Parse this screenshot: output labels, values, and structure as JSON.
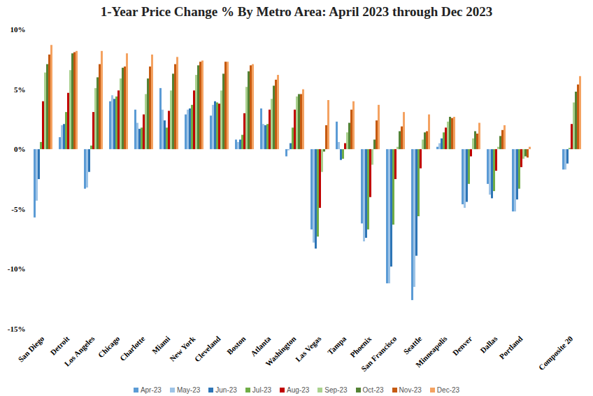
{
  "chart_data": {
    "type": "bar",
    "title": "1-Year Price Change % By Metro Area: April 2023 through Dec 2023",
    "categories": [
      "San Diego",
      "Detroit",
      "Los Angeles",
      "Chicago",
      "Charlotte",
      "Miami",
      "New York",
      "Cleveland",
      "Boston",
      "Atlanta",
      "Washington",
      "Las Vegas",
      "Tampa",
      "Phoenix",
      "San Francisco",
      "Seattle",
      "Minneapolis",
      "Denver",
      "Dallas",
      "Portland",
      null,
      "Composite 20"
    ],
    "series": [
      {
        "name": "Apr-23",
        "color": "#5b9bd5",
        "values": [
          -5.7,
          1.0,
          -3.3,
          4.0,
          3.3,
          5.1,
          2.9,
          2.8,
          0.8,
          3.4,
          -0.6,
          -6.7,
          2.3,
          -6.2,
          -11.2,
          -12.6,
          0.2,
          -4.6,
          -2.9,
          -5.2,
          null,
          -1.7
        ]
      },
      {
        "name": "May-23",
        "color": "#9dc3e6",
        "values": [
          -4.3,
          2.0,
          -3.2,
          4.5,
          2.2,
          3.3,
          3.3,
          3.7,
          0.6,
          2.1,
          -0.1,
          -7.8,
          0.6,
          -7.7,
          -11.2,
          -11.5,
          0.5,
          -4.9,
          -3.8,
          -5.2,
          null,
          -1.7
        ]
      },
      {
        "name": "Jun-23",
        "color": "#2e75b6",
        "values": [
          -2.5,
          2.1,
          -1.9,
          4.2,
          1.7,
          2.4,
          3.4,
          4.0,
          0.8,
          2.0,
          0.5,
          -8.3,
          -0.9,
          -7.4,
          -9.8,
          -8.9,
          0.9,
          -4.4,
          -4.1,
          -4.2,
          null,
          -1.2
        ]
      },
      {
        "name": "Jul-23",
        "color": "#70ad47",
        "values": [
          0.6,
          3.1,
          0.3,
          4.4,
          1.8,
          1.8,
          3.7,
          3.9,
          1.2,
          2.1,
          1.8,
          -7.3,
          -0.8,
          -6.7,
          -6.3,
          -5.6,
          1.4,
          -2.9,
          -3.5,
          -3.3,
          null,
          0.1
        ]
      },
      {
        "name": "Aug-23",
        "color": "#c00000",
        "values": [
          4.0,
          4.7,
          3.1,
          4.9,
          2.9,
          3.2,
          4.9,
          3.8,
          3.0,
          3.3,
          3.3,
          -4.9,
          0.5,
          -4.0,
          -2.5,
          -1.6,
          1.8,
          -0.6,
          -1.8,
          -1.5,
          null,
          2.1
        ]
      },
      {
        "name": "Sep-23",
        "color": "#a9d18e",
        "values": [
          6.4,
          6.6,
          5.1,
          5.9,
          4.6,
          4.9,
          6.2,
          4.9,
          5.2,
          4.2,
          4.4,
          -1.9,
          1.4,
          -1.3,
          0.2,
          0.8,
          2.3,
          0.9,
          0.2,
          -0.8,
          null,
          3.9
        ]
      },
      {
        "name": "Oct-23",
        "color": "#548235",
        "values": [
          7.1,
          8.0,
          6.0,
          6.8,
          5.9,
          6.3,
          7.0,
          6.3,
          6.5,
          5.3,
          4.6,
          -0.2,
          2.2,
          0.8,
          1.5,
          1.4,
          2.7,
          1.5,
          1.1,
          -0.6,
          null,
          4.8
        ]
      },
      {
        "name": "Nov-23",
        "color": "#c55a11",
        "values": [
          7.9,
          8.1,
          7.1,
          6.9,
          6.9,
          7.1,
          7.3,
          7.3,
          7.0,
          5.8,
          4.6,
          2.0,
          3.3,
          2.4,
          1.9,
          1.5,
          2.6,
          1.3,
          1.6,
          -0.7,
          null,
          5.4
        ]
      },
      {
        "name": "Dec-23",
        "color": "#f4a261",
        "values": [
          8.7,
          8.2,
          8.2,
          8.0,
          7.9,
          7.7,
          7.4,
          7.3,
          7.1,
          6.2,
          5.0,
          4.1,
          4.0,
          3.7,
          3.1,
          2.9,
          2.7,
          2.2,
          2.0,
          0.2,
          null,
          6.1
        ]
      }
    ],
    "ylim": [
      -15,
      10
    ],
    "yticks": [
      {
        "value": -15,
        "label": "-15%"
      },
      {
        "value": -10,
        "label": "-10%"
      },
      {
        "value": -5,
        "label": "-5%"
      },
      {
        "value": 0,
        "label": "0%"
      },
      {
        "value": 5,
        "label": "5%"
      },
      {
        "value": 10,
        "label": "10%"
      }
    ],
    "grid": false,
    "legend": "bottom"
  }
}
